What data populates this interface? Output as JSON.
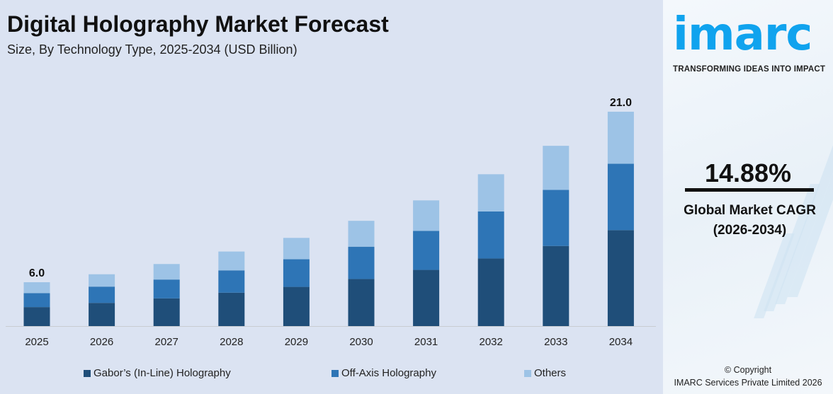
{
  "header": {
    "title": "Digital Holography Market Forecast",
    "subtitle": "Size, By Technology Type, 2025-2034 (USD Billion)"
  },
  "chart_data": {
    "type": "bar",
    "stacked": true,
    "title": "Digital Holography Market Forecast",
    "subtitle": "Size, By Technology Type, 2025-2034 (USD Billion)",
    "xlabel": "",
    "ylabel": "",
    "grid": false,
    "legend_position": "bottom",
    "categories": [
      "2025",
      "2026",
      "2027",
      "2028",
      "2029",
      "2030",
      "2031",
      "2032",
      "2033",
      "2034"
    ],
    "series": [
      {
        "name": "Gabor’s (In-Line) Holography",
        "color": "#1f4e79",
        "values": [
          2.6,
          3.0,
          3.4,
          3.9,
          4.4,
          5.1,
          5.9,
          6.9,
          8.0,
          9.4
        ]
      },
      {
        "name": "Off-Axis Holography",
        "color": "#2e75b6",
        "values": [
          1.9,
          2.1,
          2.3,
          2.6,
          3.1,
          3.5,
          4.1,
          4.8,
          5.6,
          6.5
        ]
      },
      {
        "name": "Others",
        "color": "#9dc3e6",
        "values": [
          1.5,
          1.6,
          1.9,
          2.2,
          2.4,
          2.8,
          3.2,
          3.8,
          4.4,
          5.1
        ]
      }
    ],
    "data_labels": {
      "2025": "6.0",
      "2034": "21.0"
    }
  },
  "sidebar": {
    "logo": "imarc",
    "tagline": "TRANSFORMING IDEAS INTO IMPACT",
    "cagr_value": "14.88%",
    "cagr_label": "Global Market CAGR",
    "cagr_period": "(2026-2034)",
    "copyright": "© Copyright",
    "company": "IMARC Services Private Limited 2026"
  }
}
